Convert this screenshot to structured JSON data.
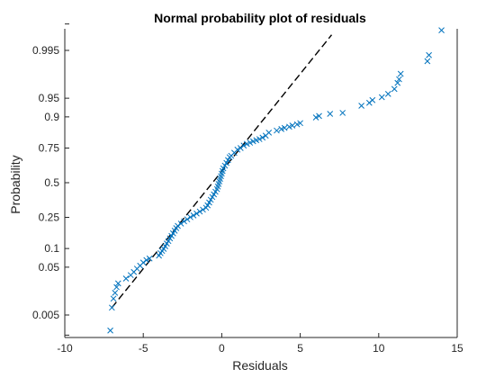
{
  "chart_data": {
    "type": "scatter",
    "title": "Normal probability plot of residuals",
    "xlabel": "Residuals",
    "ylabel": "Probability",
    "xlim": [
      -10,
      15
    ],
    "x_ticks": [
      -10,
      -5,
      0,
      5,
      10,
      15
    ],
    "x_tick_labels": [
      "-10",
      "-5",
      "0",
      "5",
      "10",
      "15"
    ],
    "y_scale": "normal-probability",
    "y_ticks": [
      0.005,
      0.05,
      0.1,
      0.25,
      0.5,
      0.75,
      0.9,
      0.95,
      0.995
    ],
    "y_tick_labels": [
      "0.005",
      "0.05",
      "0.1",
      "0.25",
      "0.5",
      "0.75",
      "0.9",
      "0.95",
      "0.995"
    ],
    "grid": false,
    "marker": "x",
    "marker_color": "#0072BD",
    "reference_line": {
      "style": "dashed",
      "color": "#000000",
      "from": [
        -7.0,
        0.0075
      ],
      "to": [
        7.0,
        0.998
      ]
    },
    "points": [
      [
        -7.1,
        0.002
      ],
      [
        -7.0,
        0.0075
      ],
      [
        -6.9,
        0.012
      ],
      [
        -6.8,
        0.016
      ],
      [
        -6.7,
        0.021
      ],
      [
        -6.6,
        0.025
      ],
      [
        -6.1,
        0.031
      ],
      [
        -5.8,
        0.036
      ],
      [
        -5.6,
        0.041
      ],
      [
        -5.4,
        0.047
      ],
      [
        -5.2,
        0.053
      ],
      [
        -5.0,
        0.06
      ],
      [
        -4.8,
        0.066
      ],
      [
        -4.6,
        0.07
      ],
      [
        -4.0,
        0.078
      ],
      [
        -3.9,
        0.085
      ],
      [
        -3.8,
        0.092
      ],
      [
        -3.7,
        0.099
      ],
      [
        -3.6,
        0.108
      ],
      [
        -3.5,
        0.118
      ],
      [
        -3.4,
        0.128
      ],
      [
        -3.3,
        0.139
      ],
      [
        -3.2,
        0.15
      ],
      [
        -3.1,
        0.162
      ],
      [
        -3.0,
        0.175
      ],
      [
        -2.9,
        0.188
      ],
      [
        -2.8,
        0.2
      ],
      [
        -2.6,
        0.213
      ],
      [
        -2.4,
        0.226
      ],
      [
        -2.2,
        0.238
      ],
      [
        -2.0,
        0.251
      ],
      [
        -1.8,
        0.262
      ],
      [
        -1.6,
        0.274
      ],
      [
        -1.4,
        0.287
      ],
      [
        -1.2,
        0.3
      ],
      [
        -1.0,
        0.313
      ],
      [
        -0.9,
        0.33
      ],
      [
        -0.8,
        0.35
      ],
      [
        -0.7,
        0.37
      ],
      [
        -0.6,
        0.39
      ],
      [
        -0.5,
        0.41
      ],
      [
        -0.4,
        0.43
      ],
      [
        -0.3,
        0.45
      ],
      [
        -0.25,
        0.47
      ],
      [
        -0.2,
        0.49
      ],
      [
        -0.15,
        0.51
      ],
      [
        -0.1,
        0.53
      ],
      [
        -0.05,
        0.55
      ],
      [
        0.0,
        0.57
      ],
      [
        0.05,
        0.59
      ],
      [
        0.1,
        0.61
      ],
      [
        0.2,
        0.63
      ],
      [
        0.3,
        0.65
      ],
      [
        0.4,
        0.67
      ],
      [
        0.5,
        0.69
      ],
      [
        0.6,
        0.7
      ],
      [
        0.8,
        0.72
      ],
      [
        1.0,
        0.74
      ],
      [
        1.2,
        0.75
      ],
      [
        1.4,
        0.765
      ],
      [
        1.6,
        0.775
      ],
      [
        1.8,
        0.782
      ],
      [
        2.0,
        0.79
      ],
      [
        2.2,
        0.796
      ],
      [
        2.4,
        0.802
      ],
      [
        2.6,
        0.81
      ],
      [
        2.8,
        0.82
      ],
      [
        3.0,
        0.835
      ],
      [
        3.5,
        0.845
      ],
      [
        3.8,
        0.852
      ],
      [
        4.0,
        0.857
      ],
      [
        4.3,
        0.862
      ],
      [
        4.5,
        0.867
      ],
      [
        4.8,
        0.872
      ],
      [
        5.0,
        0.877
      ],
      [
        6.0,
        0.898
      ],
      [
        6.2,
        0.903
      ],
      [
        6.9,
        0.91
      ],
      [
        7.7,
        0.913
      ],
      [
        8.9,
        0.933
      ],
      [
        9.4,
        0.94
      ],
      [
        9.6,
        0.946
      ],
      [
        10.2,
        0.952
      ],
      [
        10.6,
        0.958
      ],
      [
        11.0,
        0.966
      ],
      [
        11.2,
        0.974
      ],
      [
        11.3,
        0.978
      ],
      [
        11.4,
        0.983
      ],
      [
        13.1,
        0.991
      ],
      [
        13.2,
        0.9935
      ],
      [
        14.0,
        0.9985
      ]
    ]
  }
}
